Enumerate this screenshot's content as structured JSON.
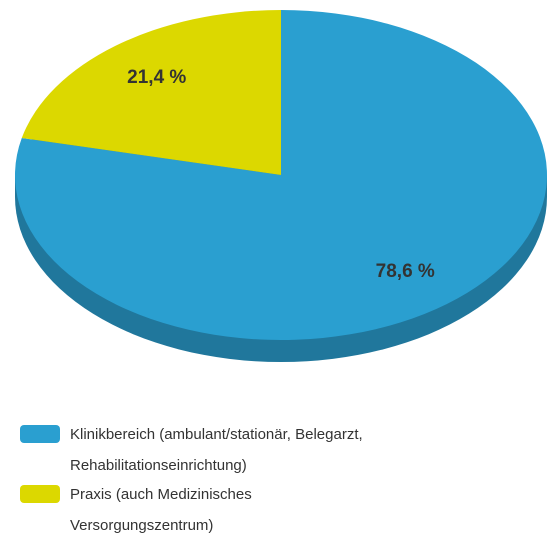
{
  "chart_data": {
    "type": "pie",
    "categories": [
      "Klinikbereich (ambulant/stationär, Belegarzt, Rehabilitationseinrichtung)",
      "Praxis (auch Medizinisches Versorgungszentrum)"
    ],
    "values": [
      78.6,
      21.4
    ],
    "value_labels": [
      "78,6 %",
      "21,4 %"
    ],
    "colors": [
      "#2a9fd0",
      "#dcd800"
    ]
  }
}
